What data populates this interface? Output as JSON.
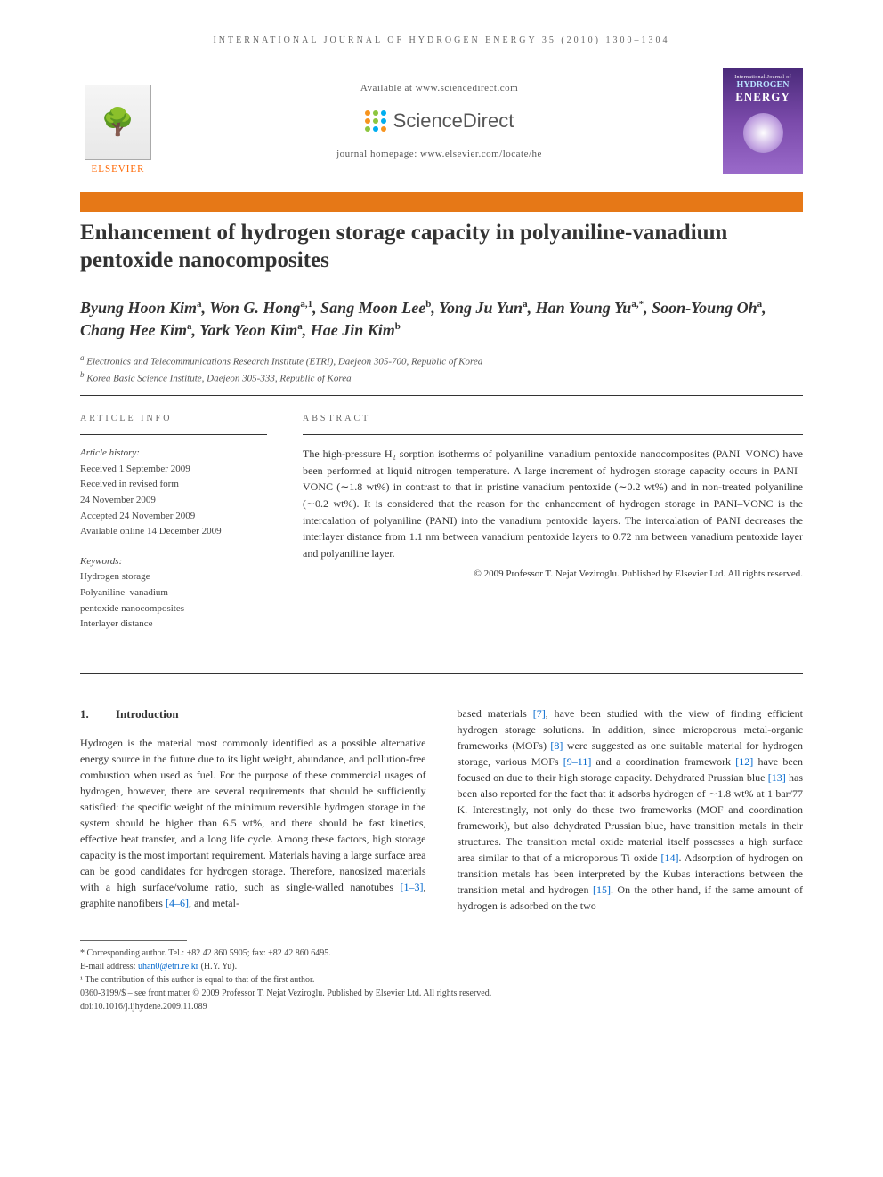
{
  "running_head": "INTERNATIONAL JOURNAL OF HYDROGEN ENERGY 35 (2010) 1300–1304",
  "header": {
    "elsevier": "ELSEVIER",
    "available": "Available at www.sciencedirect.com",
    "sd_brand": "ScienceDirect",
    "homepage": "journal homepage: www.elsevier.com/locate/he",
    "cover": {
      "line1": "International Journal of",
      "line2": "HYDROGEN",
      "line3": "ENERGY"
    }
  },
  "colors": {
    "orange_bar": "#e67817",
    "ref_link": "#0066cc",
    "sd_dots": [
      "#f7941e",
      "#8dc63f",
      "#00aeef",
      "#f7941e",
      "#8dc63f",
      "#00aeef",
      "#8dc63f",
      "#00aeef",
      "#f7941e"
    ]
  },
  "title": "Enhancement of hydrogen storage capacity in polyaniline-vanadium pentoxide nanocomposites",
  "authors_html": "Byung Hoon Kim<sup>a</sup>, Won G. Hong<sup>a,1</sup>, Sang Moon Lee<sup>b</sup>, Yong Ju Yun<sup>a</sup>, Han Young Yu<sup>a,*</sup>, Soon-Young Oh<sup>a</sup>, Chang Hee Kim<sup>a</sup>, Yark Yeon Kim<sup>a</sup>, Hae Jin Kim<sup>b</sup>",
  "affiliations": [
    {
      "sup": "a",
      "text": "Electronics and Telecommunications Research Institute (ETRI), Daejeon 305-700, Republic of Korea"
    },
    {
      "sup": "b",
      "text": "Korea Basic Science Institute, Daejeon 305-333, Republic of Korea"
    }
  ],
  "info": {
    "heading": "ARTICLE INFO",
    "history_label": "Article history:",
    "history": [
      "Received 1 September 2009",
      "Received in revised form",
      "24 November 2009",
      "Accepted 24 November 2009",
      "Available online 14 December 2009"
    ],
    "keywords_label": "Keywords:",
    "keywords": [
      "Hydrogen storage",
      "Polyaniline–vanadium",
      "pentoxide nanocomposites",
      "Interlayer distance"
    ]
  },
  "abstract": {
    "heading": "ABSTRACT",
    "text": "The high-pressure H₂ sorption isotherms of polyaniline–vanadium pentoxide nanocomposites (PANI–VONC) have been performed at liquid nitrogen temperature. A large increment of hydrogen storage capacity occurs in PANI–VONC (∼1.8 wt%) in contrast to that in pristine vanadium pentoxide (∼0.2 wt%) and in non-treated polyaniline (∼0.2 wt%). It is considered that the reason for the enhancement of hydrogen storage in PANI–VONC is the intercalation of polyaniline (PANI) into the vanadium pentoxide layers. The intercalation of PANI decreases the interlayer distance from 1.1 nm between vanadium pentoxide layers to 0.72 nm between vanadium pentoxide layer and polyaniline layer.",
    "copyright": "© 2009 Professor T. Nejat Veziroglu. Published by Elsevier Ltd. All rights reserved."
  },
  "section1": {
    "num": "1.",
    "title": "Introduction",
    "col1": "Hydrogen is the material most commonly identified as a possible alternative energy source in the future due to its light weight, abundance, and pollution-free combustion when used as fuel. For the purpose of these commercial usages of hydrogen, however, there are several requirements that should be sufficiently satisfied: the specific weight of the minimum reversible hydrogen storage in the system should be higher than 6.5 wt%, and there should be fast kinetics, effective heat transfer, and a long life cycle. Among these factors, high storage capacity is the most important requirement. Materials having a large surface area can be good candidates for hydrogen storage. Therefore, nanosized materials with a high surface/volume ratio, such as single-walled nanotubes ",
    "ref1": "[1–3]",
    "col1b": ", graphite nanofibers ",
    "ref2": "[4–6]",
    "col1c": ", and metal-",
    "col2a": "based materials ",
    "ref3": "[7]",
    "col2b": ", have been studied with the view of finding efficient hydrogen storage solutions. In addition, since microporous metal-organic frameworks (MOFs) ",
    "ref4": "[8]",
    "col2c": " were suggested as one suitable material for hydrogen storage, various MOFs ",
    "ref5": "[9–11]",
    "col2d": " and a coordination framework ",
    "ref6": "[12]",
    "col2e": " have been focused on due to their high storage capacity. Dehydrated Prussian blue ",
    "ref7": "[13]",
    "col2f": " has been also reported for the fact that it adsorbs hydrogen of ∼1.8 wt% at 1 bar/77 K. Interestingly, not only do these two frameworks (MOF and coordination framework), but also dehydrated Prussian blue, have transition metals in their structures. The transition metal oxide material itself possesses a high surface area similar to that of a microporous Ti oxide ",
    "ref8": "[14]",
    "col2g": ". Adsorption of hydrogen on transition metals has been interpreted by the Kubas interactions between the transition metal and hydrogen ",
    "ref9": "[15]",
    "col2h": ". On the other hand, if the same amount of hydrogen is adsorbed on the two"
  },
  "footnotes": {
    "corr": "* Corresponding author. Tel.: +82 42 860 5905; fax: +82 42 860 6495.",
    "email_label": "E-mail address: ",
    "email": "uhan0@etri.re.kr",
    "email_who": " (H.Y. Yu).",
    "note1": "¹ The contribution of this author is equal to that of the first author.",
    "issn": "0360-3199/$ – see front matter © 2009 Professor T. Nejat Veziroglu. Published by Elsevier Ltd. All rights reserved.",
    "doi": "doi:10.1016/j.ijhydene.2009.11.089"
  }
}
